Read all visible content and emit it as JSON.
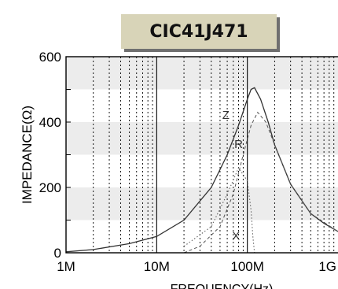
{
  "chart_data": {
    "type": "line",
    "title": "CIC41J471",
    "xlabel": "FREQUENCY(Hz)",
    "ylabel": "IMPEDANCE(Ω)",
    "xscale": "log",
    "xlim": [
      1000000,
      1000000000
    ],
    "ylim": [
      0,
      600
    ],
    "x_ticks": [
      {
        "value": 1000000,
        "label": "1M"
      },
      {
        "value": 10000000,
        "label": "10M"
      },
      {
        "value": 100000000,
        "label": "100M"
      },
      {
        "value": 1000000000,
        "label": "1G"
      }
    ],
    "y_ticks": [
      {
        "value": 0,
        "label": "0"
      },
      {
        "value": 200,
        "label": "200"
      },
      {
        "value": 400,
        "label": "400"
      },
      {
        "value": 600,
        "label": "600"
      }
    ],
    "y_bands": [
      [
        100,
        200
      ],
      [
        300,
        400
      ],
      [
        500,
        600
      ]
    ],
    "grid": true,
    "series": [
      {
        "name": "Z",
        "style": "solid",
        "x": [
          1000000,
          2000000,
          5000000,
          10000000,
          20000000,
          40000000,
          60000000,
          80000000,
          100000000,
          110000000,
          120000000,
          140000000,
          170000000,
          200000000,
          300000000,
          500000000,
          700000000,
          1000000000
        ],
        "y": [
          3,
          10,
          28,
          50,
          100,
          200,
          300,
          390,
          470,
          500,
          505,
          470,
          400,
          330,
          210,
          120,
          90,
          65
        ]
      },
      {
        "name": "R",
        "style": "dashed",
        "x": [
          20000000,
          30000000,
          50000000,
          70000000,
          90000000,
          110000000,
          130000000,
          160000000,
          200000000,
          300000000,
          500000000,
          1000000000
        ],
        "y": [
          0,
          20,
          80,
          180,
          300,
          390,
          430,
          400,
          330,
          210,
          120,
          65
        ]
      },
      {
        "name": "X",
        "style": "dotted",
        "x": [
          20000000,
          40000000,
          60000000,
          80000000,
          100000000,
          110000000,
          115000000,
          120000000
        ],
        "y": [
          20,
          80,
          180,
          260,
          220,
          130,
          50,
          0
        ]
      }
    ],
    "series_labels": [
      {
        "text": "Z",
        "x": 58000000,
        "y": 410
      },
      {
        "text": "R",
        "x": 80000000,
        "y": 320
      },
      {
        "text": "X",
        "x": 75000000,
        "y": 40
      }
    ]
  }
}
